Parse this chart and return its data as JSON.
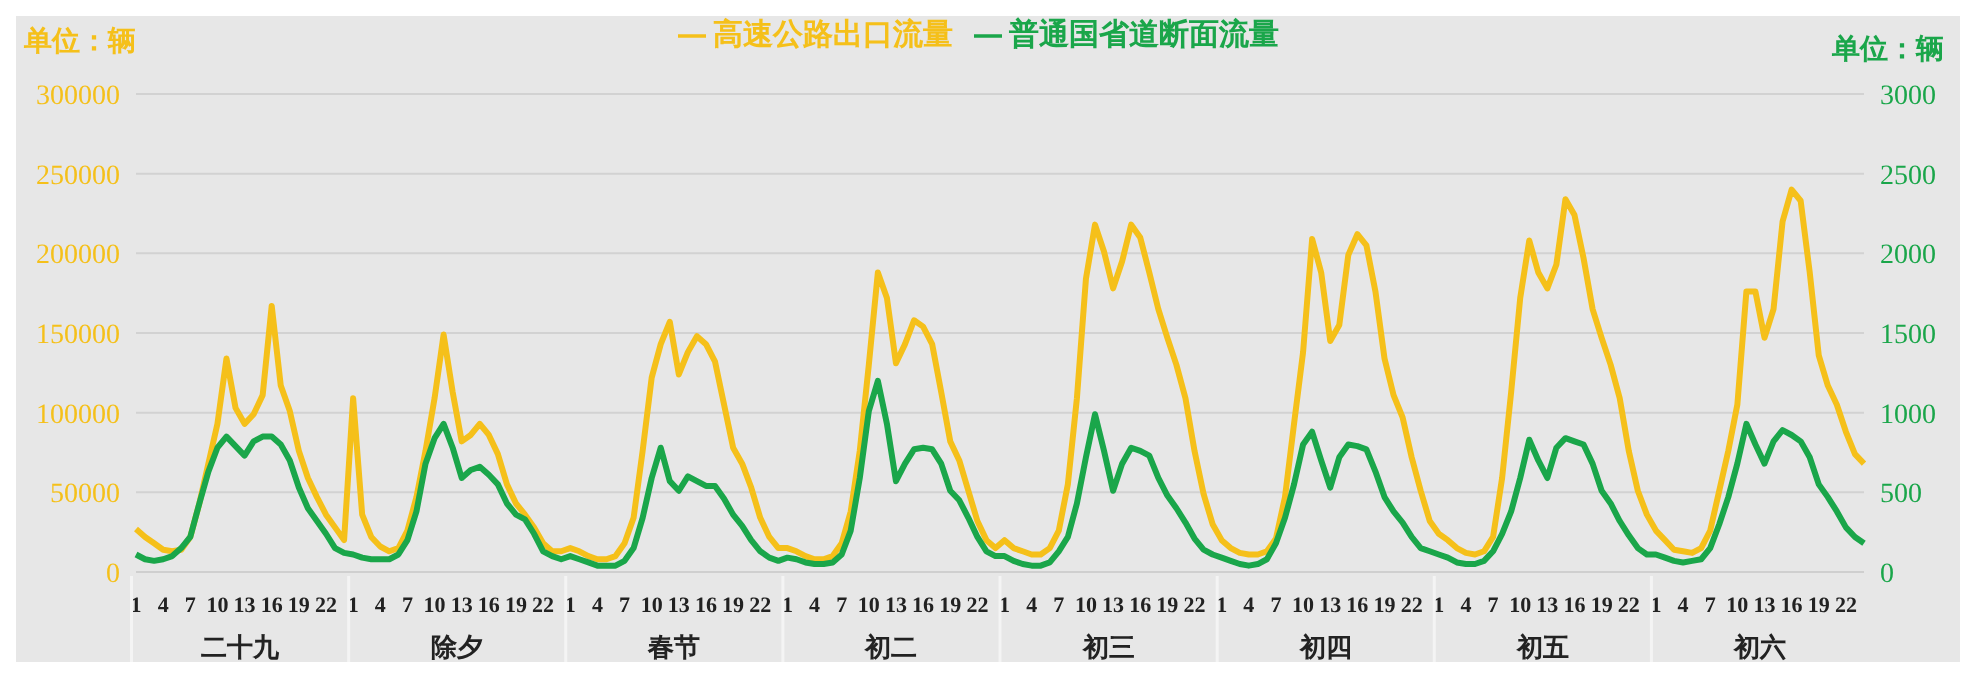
{
  "chart_data": {
    "type": "line",
    "ylabel": "单位：辆",
    "y2label": "单位：辆",
    "categories": [
      "1",
      null,
      null,
      "4",
      null,
      null,
      "7",
      null,
      null,
      "10",
      null,
      null,
      "13",
      null,
      null,
      "16",
      null,
      null,
      "19",
      null,
      null,
      "22",
      null,
      null,
      "1",
      null,
      null,
      "4",
      null,
      null,
      "7",
      null,
      null,
      "10",
      null,
      null,
      "13",
      null,
      null,
      "16",
      null,
      null,
      "19",
      null,
      null,
      "22",
      null,
      null,
      "1",
      null,
      null,
      "4",
      null,
      null,
      "7",
      null,
      null,
      "10",
      null,
      null,
      "13",
      null,
      null,
      "16",
      null,
      null,
      "19",
      null,
      null,
      "22",
      null,
      null,
      "1",
      null,
      null,
      "4",
      null,
      null,
      "7",
      null,
      null,
      "10",
      null,
      null,
      "13",
      null,
      null,
      "16",
      null,
      null,
      "19",
      null,
      null,
      "22",
      null,
      null,
      "1",
      null,
      null,
      "4",
      null,
      null,
      "7",
      null,
      null,
      "10",
      null,
      null,
      "13",
      null,
      null,
      "16",
      null,
      null,
      "19",
      null,
      null,
      "22",
      null,
      null,
      "1",
      null,
      null,
      "4",
      null,
      null,
      "7",
      null,
      null,
      "10",
      null,
      null,
      "13",
      null,
      null,
      "16",
      null,
      null,
      "19",
      null,
      null,
      "22",
      null,
      null,
      "1",
      null,
      null,
      "4",
      null,
      null,
      "7",
      null,
      null,
      "10",
      null,
      null,
      "13",
      null,
      null,
      "16",
      null,
      null,
      "19",
      null,
      null,
      "22",
      null,
      null,
      "1",
      null,
      null,
      "4",
      null,
      null,
      "7",
      null,
      null,
      "10",
      null,
      null,
      "13",
      null,
      null,
      "16",
      null,
      null,
      "19",
      null,
      null,
      "22",
      null,
      null
    ],
    "annotations": [
      "二十九",
      "除夕",
      "春节",
      "初二",
      "初三",
      "初四",
      "初五",
      "初六"
    ],
    "series": [
      {
        "name": "高速公路出口流量",
        "color": "#f5c01a",
        "values": [
          27000,
          22000,
          18000,
          14000,
          13000,
          14000,
          22000,
          43000,
          68000,
          93000,
          134000,
          103000,
          93000,
          99000,
          111000,
          167000,
          117000,
          101000,
          76000,
          59000,
          47000,
          36000,
          28000,
          20000,
          109000,
          36000,
          22000,
          16000,
          13000,
          15000,
          26000,
          47000,
          76000,
          109000,
          149000,
          113000,
          82000,
          86000,
          93000,
          86000,
          74000,
          55000,
          43000,
          36000,
          28000,
          18000,
          13000,
          13000,
          15000,
          13000,
          10000,
          8000,
          8000,
          10000,
          18000,
          34000,
          76000,
          122000,
          143000,
          157000,
          124000,
          138000,
          148000,
          143000,
          132000,
          105000,
          78000,
          68000,
          53000,
          34000,
          22000,
          15000,
          15000,
          13000,
          10000,
          8000,
          8000,
          10000,
          18000,
          38000,
          76000,
          130000,
          188000,
          172000,
          131000,
          143000,
          158000,
          154000,
          143000,
          113000,
          82000,
          70000,
          51000,
          32000,
          20000,
          15000,
          20000,
          15000,
          13000,
          11000,
          11000,
          15000,
          26000,
          55000,
          109000,
          184000,
          218000,
          201000,
          178000,
          195000,
          218000,
          210000,
          188000,
          165000,
          147000,
          130000,
          109000,
          76000,
          49000,
          30000,
          20000,
          15000,
          12000,
          11000,
          11000,
          13000,
          21000,
          47000,
          93000,
          138000,
          209000,
          188000,
          145000,
          155000,
          199000,
          212000,
          205000,
          176000,
          134000,
          111000,
          97000,
          72000,
          51000,
          32000,
          24000,
          20000,
          15000,
          12000,
          11000,
          13000,
          22000,
          59000,
          113000,
          172000,
          208000,
          188000,
          178000,
          193000,
          234000,
          224000,
          197000,
          165000,
          147000,
          130000,
          109000,
          76000,
          51000,
          36000,
          26000,
          20000,
          14000,
          13000,
          12000,
          15000,
          26000,
          51000,
          76000,
          105000,
          176000,
          176000,
          147000,
          165000,
          220000,
          240000,
          233000,
          188000,
          136000,
          117000,
          105000,
          88000,
          74000,
          68000
        ]
      },
      {
        "name": "普通国省道断面流量",
        "color": "#1aa64a",
        "axis": "y2",
        "values": [
          110,
          80,
          70,
          80,
          100,
          150,
          220,
          430,
          630,
          780,
          850,
          790,
          730,
          820,
          850,
          850,
          800,
          700,
          530,
          400,
          320,
          240,
          150,
          120,
          110,
          90,
          80,
          80,
          80,
          110,
          200,
          380,
          680,
          840,
          930,
          780,
          590,
          640,
          660,
          610,
          550,
          430,
          360,
          330,
          240,
          130,
          100,
          80,
          100,
          80,
          60,
          40,
          40,
          40,
          70,
          150,
          340,
          590,
          780,
          570,
          510,
          600,
          570,
          540,
          540,
          460,
          360,
          290,
          200,
          130,
          90,
          70,
          90,
          80,
          60,
          50,
          50,
          60,
          110,
          260,
          590,
          1010,
          1200,
          930,
          570,
          680,
          770,
          780,
          770,
          680,
          510,
          450,
          340,
          220,
          130,
          100,
          100,
          70,
          50,
          40,
          40,
          60,
          130,
          220,
          430,
          720,
          990,
          760,
          510,
          680,
          780,
          760,
          730,
          590,
          480,
          400,
          310,
          210,
          140,
          110,
          90,
          70,
          50,
          40,
          50,
          80,
          180,
          340,
          550,
          800,
          880,
          700,
          530,
          720,
          800,
          790,
          770,
          630,
          470,
          380,
          310,
          220,
          150,
          130,
          110,
          90,
          60,
          50,
          50,
          70,
          130,
          240,
          380,
          590,
          830,
          700,
          590,
          780,
          840,
          820,
          800,
          680,
          510,
          430,
          320,
          230,
          150,
          110,
          110,
          90,
          70,
          60,
          70,
          80,
          150,
          300,
          470,
          680,
          930,
          800,
          680,
          820,
          890,
          860,
          820,
          720,
          550,
          470,
          380,
          280,
          220,
          180
        ]
      }
    ],
    "ylim": [
      0,
      300000
    ],
    "yticks": [
      0,
      50000,
      100000,
      150000,
      200000,
      250000,
      300000
    ],
    "y2lim": [
      0,
      3000
    ],
    "y2ticks": [
      0,
      500,
      1000,
      1500,
      2000,
      2500,
      3000
    ],
    "grid": "y",
    "legend": "top"
  }
}
